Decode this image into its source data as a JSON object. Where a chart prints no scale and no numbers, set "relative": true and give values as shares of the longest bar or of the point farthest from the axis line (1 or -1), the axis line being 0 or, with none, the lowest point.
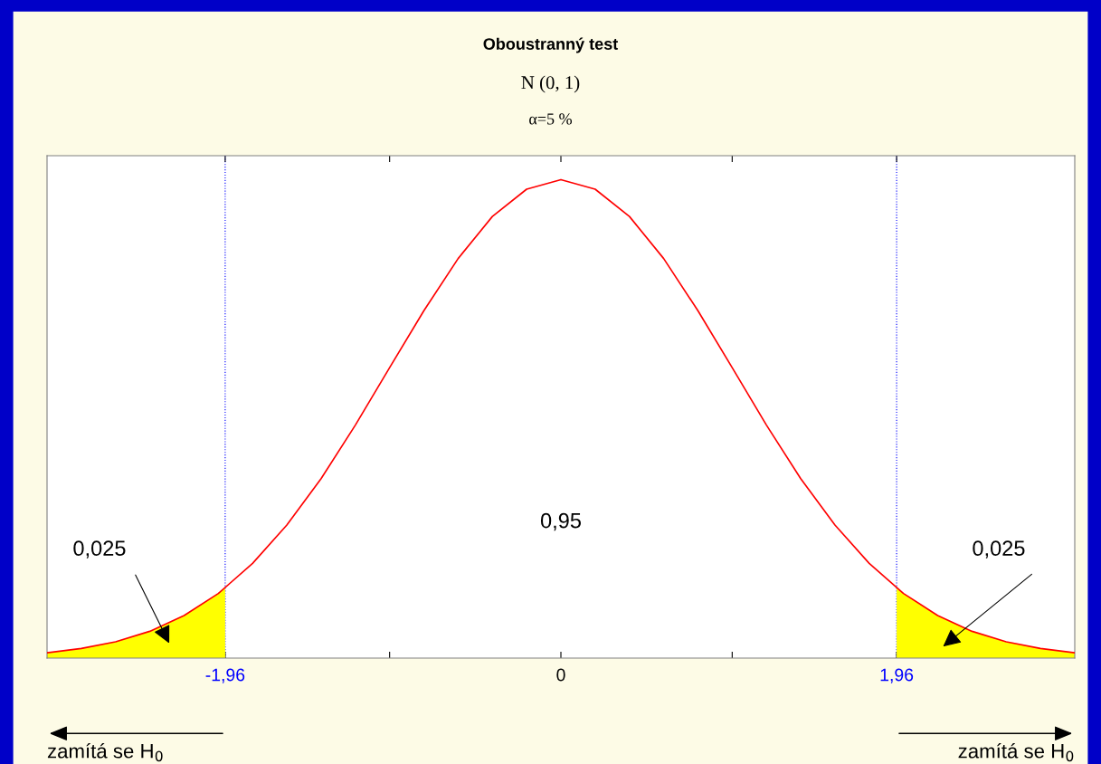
{
  "chart_data": {
    "type": "line",
    "title": "Oboustranný test",
    "subtitle": "N (0, 1)",
    "relative": true,
    "xlim": [
      -3,
      3
    ],
    "xticks": [
      {
        "value": -1.96,
        "label": "-1,96"
      },
      {
        "value": -1,
        "label": null
      },
      {
        "value": 0,
        "label": "0"
      },
      {
        "value": 1,
        "label": null
      },
      {
        "value": 1.96,
        "label": "1,96"
      }
    ],
    "series": [
      {
        "color": "#ff0000",
        "x": [
          -3,
          -2.8,
          -2.6,
          -2.4,
          -2.2,
          -2,
          -1.8,
          -1.6,
          -1.4,
          -1.2,
          -1,
          -0.8,
          -0.6,
          -0.4,
          -0.2,
          0,
          0.2,
          0.4,
          0.6,
          0.8,
          1,
          1.2,
          1.4,
          1.6,
          1.8,
          2,
          2.2,
          2.4,
          2.6,
          2.8,
          3
        ],
        "values": [
          0.011,
          0.02,
          0.034,
          0.056,
          0.089,
          0.135,
          0.198,
          0.278,
          0.375,
          0.487,
          0.607,
          0.726,
          0.835,
          0.923,
          0.98,
          1,
          0.98,
          0.923,
          0.835,
          0.726,
          0.607,
          0.487,
          0.375,
          0.278,
          0.198,
          0.135,
          0.089,
          0.056,
          0.034,
          0.02,
          0.011
        ]
      },
      {
        "type": "area",
        "color": "#ffff00",
        "x": [
          -3,
          -2.8,
          -2.6,
          -2.4,
          -2.2,
          -2,
          -1.96
        ],
        "values": [
          0.011,
          0.02,
          0.034,
          0.056,
          0.089,
          0.135,
          0.146
        ]
      },
      {
        "type": "area",
        "color": "#ffff00",
        "x": [
          1.96,
          2,
          2.2,
          2.4,
          2.6,
          2.8,
          3
        ],
        "values": [
          0.146,
          0.135,
          0.089,
          0.056,
          0.034,
          0.02,
          0.011
        ]
      }
    ],
    "ref_lines": [
      {
        "axis": "x",
        "value": -1.96,
        "color": "#0000ff",
        "line_style": "dotted"
      },
      {
        "axis": "x",
        "value": 1.96,
        "color": "#0000ff",
        "line_style": "dotted"
      }
    ],
    "annotations": [
      "α=5 %",
      "0,95",
      "zamítá se H$_{0}$",
      "zamítá se H$_{0}$",
      "0,025",
      "0,025"
    ],
    "grid": false,
    "legend": false
  }
}
